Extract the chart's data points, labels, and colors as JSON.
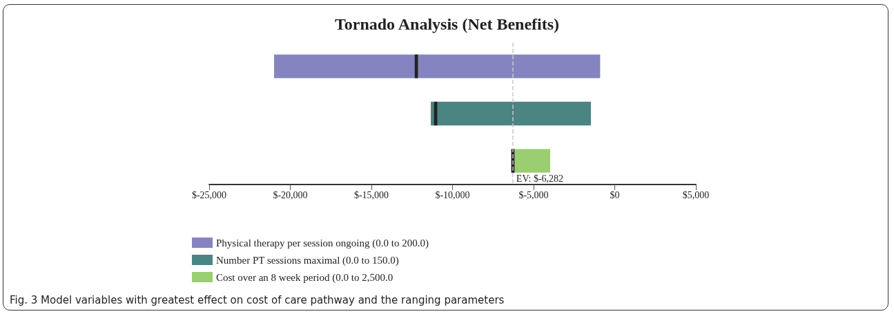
{
  "chart_data": {
    "type": "bar",
    "orientation": "horizontal",
    "title": "Tornado Analysis (Net Benefits)",
    "categories": [
      null,
      null,
      null
    ],
    "series": [
      {
        "name": "Physical therapy per session ongoing (0.0 to 200.0)",
        "color": "#8684c0",
        "base": [
          -21000,
          null,
          null
        ],
        "values": [
          20100,
          null,
          null
        ]
      },
      {
        "name": "Number PT sessions maximal (0.0 to 150.0)",
        "color": "#4a8483",
        "base": [
          null,
          -11340,
          null
        ],
        "values": [
          null,
          9870,
          null
        ]
      },
      {
        "name": "Cost over an 8 week period (0.0 to 2,500.0",
        "color": "#9bcd72",
        "base": [
          null,
          null,
          -6282
        ],
        "values": [
          null,
          null,
          2300
        ]
      },
      {
        "color": "#222222",
        "base": [
          -12330,
          -11140,
          -6380
        ],
        "values": [
          200,
          200,
          200
        ]
      }
    ],
    "xlim": [
      -25000,
      5000
    ],
    "xticks": [
      {
        "value": -25000,
        "label": "$-25,000"
      },
      {
        "value": -20000,
        "label": "$-20,000"
      },
      {
        "value": -15000,
        "label": "$-15,000"
      },
      {
        "value": -10000,
        "label": "$-10,000"
      },
      {
        "value": -5000,
        "label": "$-5,000"
      },
      {
        "value": 0,
        "label": "$0"
      },
      {
        "value": 5000,
        "label": "$5,000"
      }
    ],
    "ref_lines": [
      {
        "axis": "x",
        "value": -6282,
        "label": "EV: $-6,282",
        "color": "#c8c8c8",
        "line_style": "dashed"
      }
    ],
    "legend": "bottom left",
    "grid": false,
    "annotations": [
      "Fig. 3 Model variables with greatest effect on cost of care pathway and the ranging parameters"
    ]
  }
}
